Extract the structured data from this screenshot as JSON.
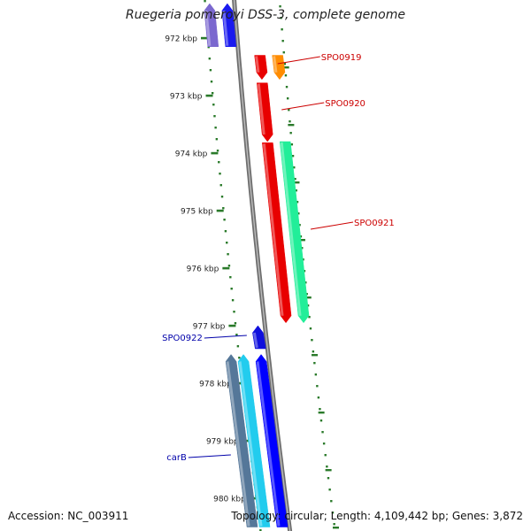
{
  "title": "Ruegeria pomeroyi DSS-3, complete genome",
  "footer": {
    "accession": "Accession: NC_003911",
    "summary": "Topology: circular; Length: 4,109,442 bp; Genes: 3,872"
  },
  "ruler": {
    "unit": "kbp",
    "ticks": [
      {
        "label": "972 kbp",
        "pos": 972
      },
      {
        "label": "973 kbp",
        "pos": 973
      },
      {
        "label": "974 kbp",
        "pos": 974
      },
      {
        "label": "975 kbp",
        "pos": 975
      },
      {
        "label": "976 kbp",
        "pos": 976
      },
      {
        "label": "977 kbp",
        "pos": 977
      },
      {
        "label": "978 kbp",
        "pos": 978
      },
      {
        "label": "979 kbp",
        "pos": 979
      },
      {
        "label": "980 kbp",
        "pos": 980
      }
    ]
  },
  "features": [
    {
      "id": "f1",
      "label": "",
      "start": 971.4,
      "end": 972.15,
      "strand": "reverse",
      "lane": 2,
      "color": "#7b68cf"
    },
    {
      "id": "f2",
      "label": "",
      "start": 971.4,
      "end": 972.15,
      "strand": "reverse",
      "lane": 1,
      "color": "#1a1aee"
    },
    {
      "id": "SPO0919",
      "label": "SPO0919",
      "start": 972.3,
      "end": 972.72,
      "strand": "forward",
      "lane": 1,
      "color": "#e80000"
    },
    {
      "id": "f4",
      "label": "",
      "start": 972.3,
      "end": 972.72,
      "strand": "forward",
      "lane": 2,
      "color": "#ff8c00"
    },
    {
      "id": "SPO0920",
      "label": "SPO0920",
      "start": 972.78,
      "end": 973.8,
      "strand": "forward",
      "lane": 1,
      "color": "#e80000"
    },
    {
      "id": "f6",
      "label": "",
      "start": 973.82,
      "end": 976.95,
      "strand": "forward",
      "lane": 1,
      "color": "#e80000"
    },
    {
      "id": "SPO0921",
      "label": "SPO0921",
      "start": 973.8,
      "end": 976.95,
      "strand": "forward",
      "lane": 2,
      "color": "#22ee99"
    },
    {
      "id": "SPO0922",
      "label": "SPO0922",
      "start": 977.0,
      "end": 977.4,
      "strand": "reverse",
      "lane": 1,
      "color": "#1010dd"
    },
    {
      "id": "f9",
      "label": "",
      "start": 977.5,
      "end": 980.5,
      "strand": "reverse",
      "lane": 1,
      "color": "#0000ff"
    },
    {
      "id": "f10",
      "label": "",
      "start": 977.5,
      "end": 980.5,
      "strand": "reverse",
      "lane": 2,
      "color": "#22ccee"
    },
    {
      "id": "carB",
      "label": "carB",
      "start": 977.5,
      "end": 980.5,
      "strand": "reverse",
      "lane": 3,
      "color": "#557799"
    }
  ],
  "colors": {
    "backbone": "#888888",
    "ruler": "#2a7a2a",
    "label_forward": "#cc0000",
    "label_reverse": "#0000aa"
  }
}
